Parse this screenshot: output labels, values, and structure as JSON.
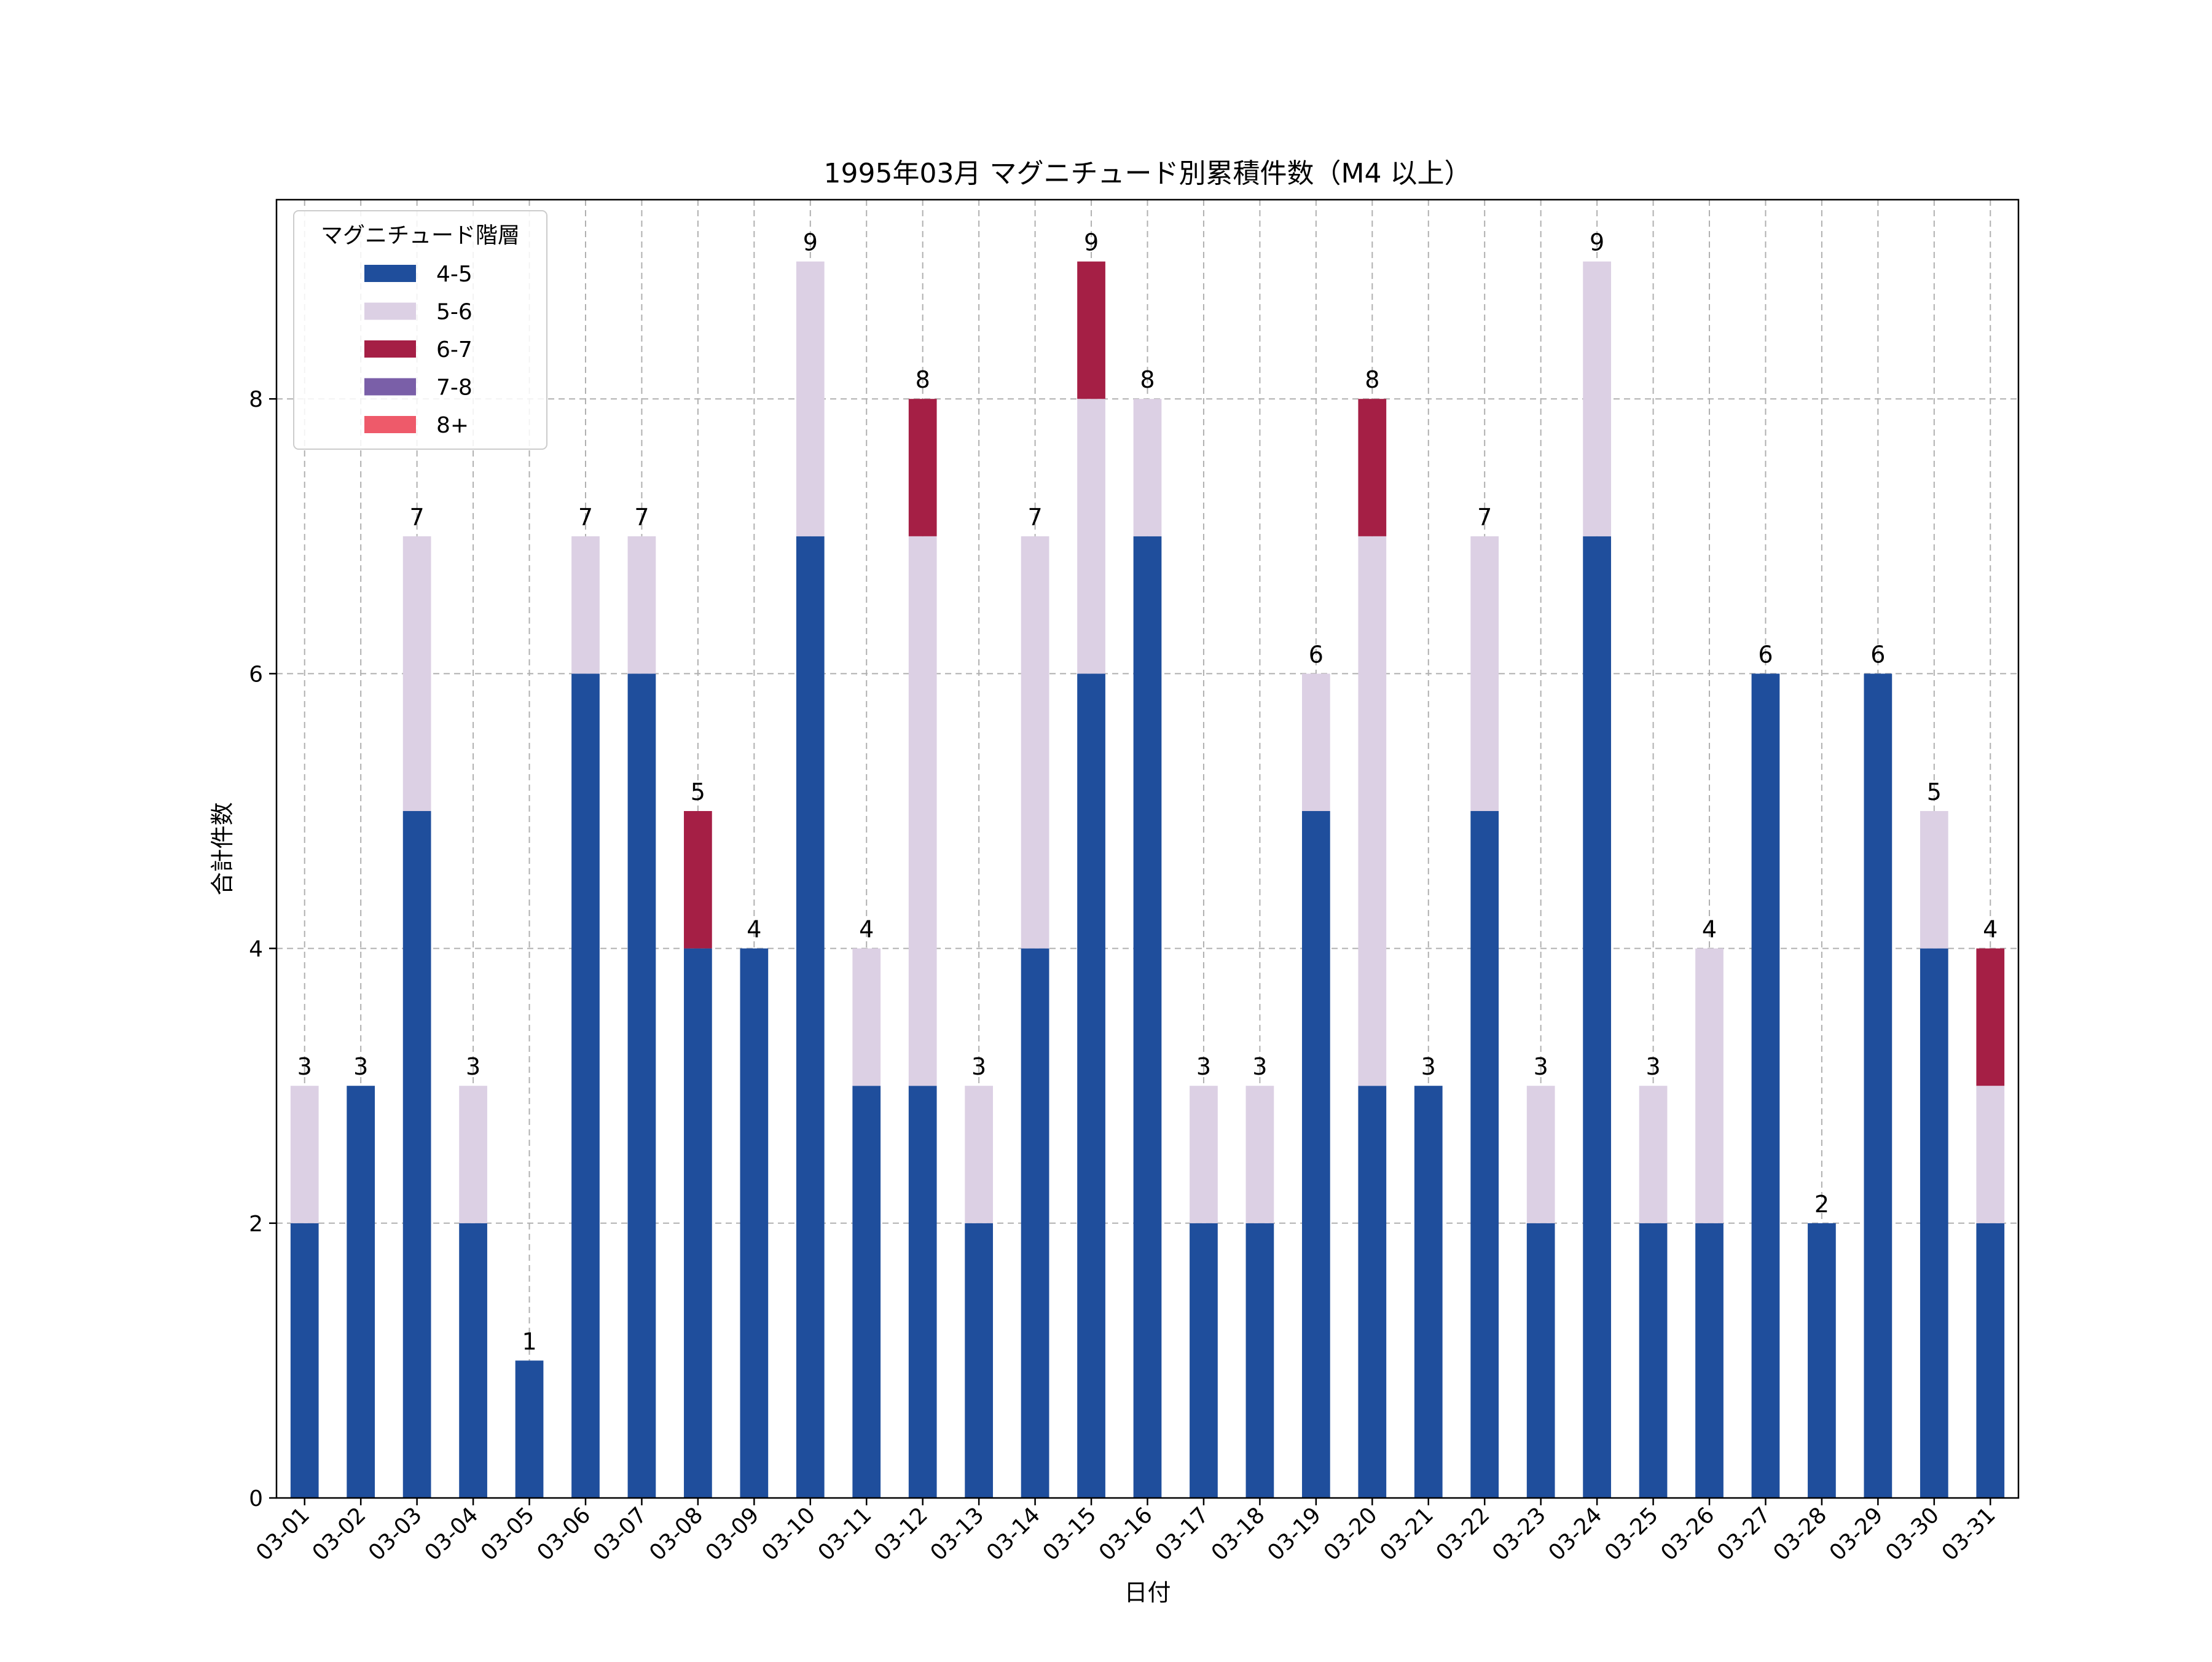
{
  "chart_data": {
    "type": "bar",
    "stacked": true,
    "title": "1995年03月 マグニチュード別累積件数（M4 以上）",
    "xlabel": "日付",
    "ylabel": "合計件数",
    "ylim": [
      0,
      9.45
    ],
    "yticks": [
      0,
      2,
      4,
      6,
      8
    ],
    "grid": true,
    "legend": {
      "title": "マグニチュード階層",
      "placement": "top-left"
    },
    "categories": [
      "03-01",
      "03-02",
      "03-03",
      "03-04",
      "03-05",
      "03-06",
      "03-07",
      "03-08",
      "03-09",
      "03-10",
      "03-11",
      "03-12",
      "03-13",
      "03-14",
      "03-15",
      "03-16",
      "03-17",
      "03-18",
      "03-19",
      "03-20",
      "03-21",
      "03-22",
      "03-23",
      "03-24",
      "03-25",
      "03-26",
      "03-27",
      "03-28",
      "03-29",
      "03-30",
      "03-31"
    ],
    "series": [
      {
        "name": "4-5",
        "color": "#1f4e9c",
        "values": [
          2,
          3,
          5,
          2,
          1,
          6,
          6,
          4,
          4,
          7,
          3,
          3,
          2,
          4,
          6,
          7,
          2,
          2,
          5,
          3,
          3,
          5,
          2,
          7,
          2,
          2,
          6,
          2,
          6,
          4,
          2
        ]
      },
      {
        "name": "5-6",
        "color": "#dcd0e4",
        "values": [
          1,
          0,
          2,
          1,
          0,
          1,
          1,
          0,
          0,
          2,
          1,
          4,
          1,
          3,
          2,
          1,
          1,
          1,
          1,
          4,
          0,
          2,
          1,
          2,
          1,
          2,
          0,
          0,
          0,
          1,
          1
        ]
      },
      {
        "name": "6-7",
        "color": "#a51f45",
        "values": [
          0,
          0,
          0,
          0,
          0,
          0,
          0,
          1,
          0,
          0,
          0,
          1,
          0,
          0,
          1,
          0,
          0,
          0,
          0,
          1,
          0,
          0,
          0,
          0,
          0,
          0,
          0,
          0,
          0,
          0,
          1
        ]
      },
      {
        "name": "7-8",
        "color": "#7a5fa8",
        "values": [
          0,
          0,
          0,
          0,
          0,
          0,
          0,
          0,
          0,
          0,
          0,
          0,
          0,
          0,
          0,
          0,
          0,
          0,
          0,
          0,
          0,
          0,
          0,
          0,
          0,
          0,
          0,
          0,
          0,
          0,
          0
        ]
      },
      {
        "name": "8+",
        "color": "#ee5a6a",
        "values": [
          0,
          0,
          0,
          0,
          0,
          0,
          0,
          0,
          0,
          0,
          0,
          0,
          0,
          0,
          0,
          0,
          0,
          0,
          0,
          0,
          0,
          0,
          0,
          0,
          0,
          0,
          0,
          0,
          0,
          0,
          0
        ]
      }
    ],
    "totals": [
      3,
      3,
      7,
      3,
      1,
      7,
      7,
      5,
      4,
      9,
      4,
      8,
      3,
      7,
      9,
      8,
      3,
      3,
      6,
      8,
      3,
      7,
      3,
      9,
      3,
      4,
      6,
      2,
      6,
      5,
      4
    ]
  }
}
